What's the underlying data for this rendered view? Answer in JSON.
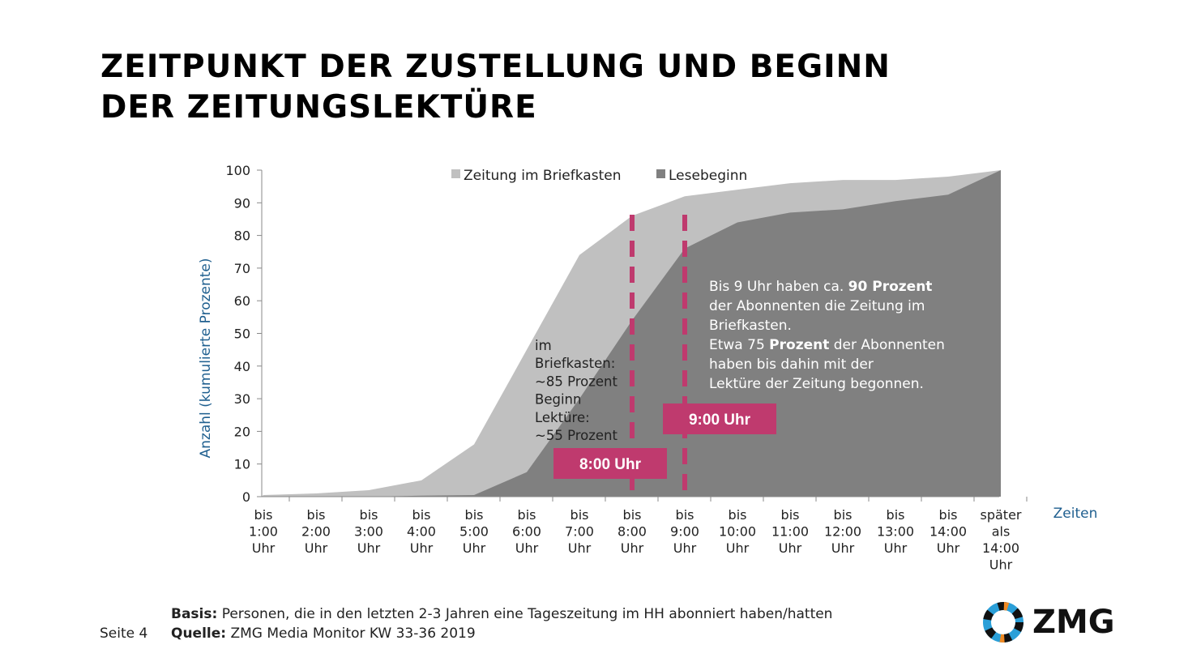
{
  "title_line1": "ZEITPUNKT DER ZUSTELLUNG UND BEGINN",
  "title_line2": "DER ZEITUNGSLEKTÜRE",
  "chart_data": {
    "type": "area",
    "ylabel": "Anzahl (kumulierte Prozente)",
    "xlabel": "Zeiten",
    "ylim": [
      0,
      100
    ],
    "yticks": [
      0,
      10,
      20,
      30,
      40,
      50,
      60,
      70,
      80,
      90,
      100
    ],
    "categories": [
      [
        "bis",
        "1:00",
        "Uhr"
      ],
      [
        "bis",
        "2:00",
        "Uhr"
      ],
      [
        "bis",
        "3:00",
        "Uhr"
      ],
      [
        "bis",
        "4:00",
        "Uhr"
      ],
      [
        "bis",
        "5:00",
        "Uhr"
      ],
      [
        "bis",
        "6:00",
        "Uhr"
      ],
      [
        "bis",
        "7:00",
        "Uhr"
      ],
      [
        "bis",
        "8:00",
        "Uhr"
      ],
      [
        "bis",
        "9:00",
        "Uhr"
      ],
      [
        "bis",
        "10:00",
        "Uhr"
      ],
      [
        "bis",
        "11:00",
        "Uhr"
      ],
      [
        "bis",
        "12:00",
        "Uhr"
      ],
      [
        "bis",
        "13:00",
        "Uhr"
      ],
      [
        "bis",
        "14:00",
        "Uhr"
      ],
      [
        "später",
        "als",
        "14:00",
        "Uhr"
      ]
    ],
    "series": [
      {
        "name": "Zeitung im Briefkasten",
        "color": "#c0c0c0",
        "values": [
          0.5,
          1,
          2,
          5,
          16,
          45,
          74,
          86,
          92,
          94,
          96,
          97,
          97,
          98,
          100
        ]
      },
      {
        "name": "Lesebeginn",
        "color": "#808080",
        "values": [
          0,
          0,
          0,
          0.3,
          0.5,
          7.5,
          30,
          54,
          76,
          84,
          87,
          88,
          90.5,
          92.5,
          100
        ]
      }
    ],
    "legend": "top",
    "markers": [
      {
        "category_index": 7,
        "label": "8:00 Uhr"
      },
      {
        "category_index": 8,
        "label": "9:00 Uhr"
      }
    ],
    "marker_color": "#bf3a6e",
    "annotation_left": [
      "im",
      "Briefkasten:",
      "~85 Prozent",
      "Beginn",
      "Lektüre:",
      "~55 Prozent"
    ],
    "annotation_right": [
      [
        [
          "Bis 9 Uhr haben ca. ",
          false
        ],
        [
          "90 Prozent",
          true
        ]
      ],
      [
        [
          "der Abonnenten die Zeitung im",
          false
        ]
      ],
      [
        [
          "Briefkasten.",
          false
        ]
      ],
      [
        [
          "Etwa 75 ",
          false
        ],
        [
          "Prozent",
          true
        ],
        [
          " der Abonnenten",
          false
        ]
      ],
      [
        [
          "haben bis dahin mit der",
          false
        ]
      ],
      [
        [
          "Lektüre der Zeitung begonnen.",
          false
        ]
      ]
    ]
  },
  "footer": {
    "page": "Seite 4",
    "basis_label": "Basis:",
    "basis_text": " Personen, die in den letzten 2-3 Jahren eine Tageszeitung im HH abonniert haben/hatten",
    "source_label": "Quelle:",
    "source_text": " ZMG Media Monitor KW 33-36 2019"
  },
  "logo_text": "ZMG"
}
